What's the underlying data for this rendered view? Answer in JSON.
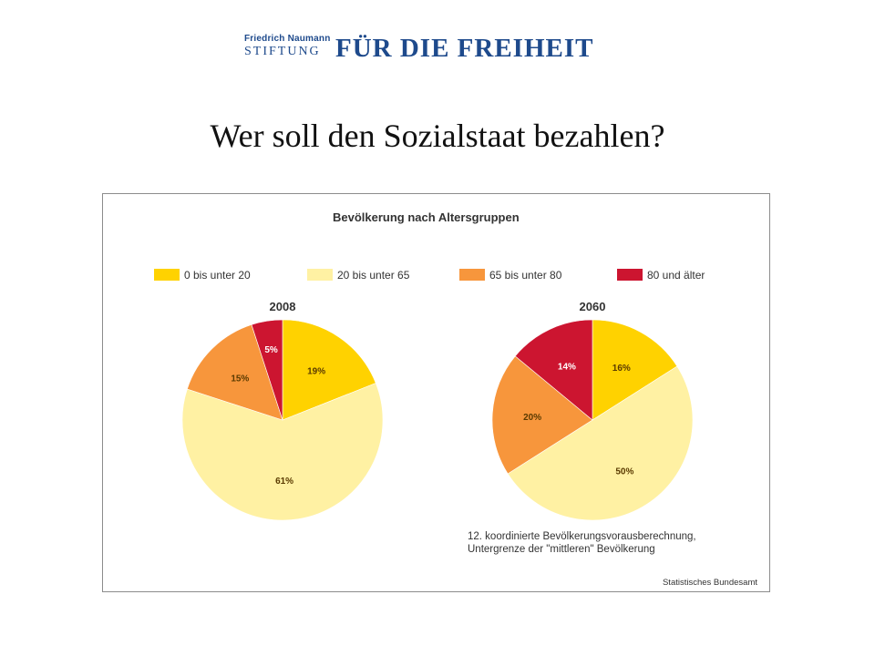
{
  "header": {
    "logo_line1": "Friedrich Naumann",
    "logo_line2": "STIFTUNG",
    "logo_tagline": "FÜR DIE FREIHEIT",
    "brand_color": "#1e4a8c"
  },
  "slide": {
    "title": "Wer soll den Sozialstaat bezahlen?"
  },
  "chart_data": {
    "type": "pie",
    "title": "Bevölkerung nach Altersgruppen",
    "legend_placement": "top",
    "categories": [
      "0 bis unter 20",
      "20 bis unter 65",
      "65 bis unter 80",
      "80 und älter"
    ],
    "colors": [
      "#ffd200",
      "#fff1a3",
      "#f7963c",
      "#cc1530"
    ],
    "series": [
      {
        "name": "2008",
        "values": [
          19,
          61,
          15,
          5
        ],
        "labels": [
          "19%",
          "61%",
          "15%",
          "5%"
        ]
      },
      {
        "name": "2060",
        "values": [
          16,
          50,
          20,
          14
        ],
        "labels": [
          "16%",
          "50%",
          "20%",
          "14%"
        ]
      }
    ],
    "footnote_line1": "12. koordinierte Bevölkerungsvorausberechnung,",
    "footnote_line2": "Untergrenze der \"mittleren\" Bevölkerung",
    "source": "Statistisches Bundesamt"
  }
}
